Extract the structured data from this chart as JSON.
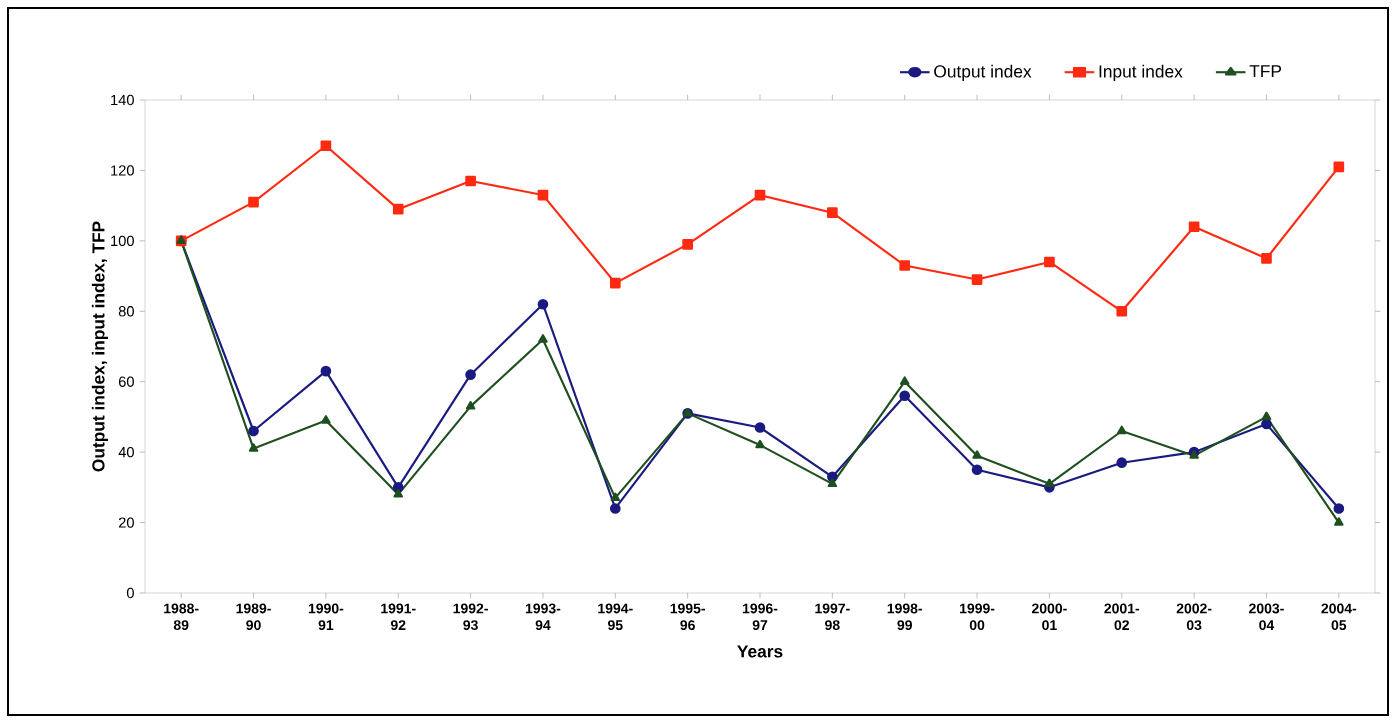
{
  "chart_data": {
    "type": "line",
    "xlabel": "Years",
    "ylabel": "Output index, input index, TFP",
    "categories": [
      "1988-89",
      "1989-90",
      "1990-91",
      "1991-92",
      "1992-93",
      "1993-94",
      "1994-95",
      "1995-96",
      "1996-97",
      "1997-98",
      "1998-99",
      "1999-00",
      "2000-01",
      "2001-02",
      "2002-03",
      "2003-04",
      "2004-05"
    ],
    "series": [
      {
        "name": "Output index",
        "color": "#1a1a80",
        "marker": "circle",
        "values": [
          100,
          46,
          63,
          30,
          62,
          82,
          24,
          51,
          47,
          33,
          56,
          35,
          30,
          37,
          40,
          48,
          24
        ]
      },
      {
        "name": "Input index",
        "color": "#ff2a10",
        "marker": "square",
        "values": [
          100,
          111,
          127,
          109,
          117,
          113,
          88,
          99,
          113,
          108,
          93,
          89,
          94,
          80,
          104,
          95,
          121
        ]
      },
      {
        "name": "TFP",
        "color": "#1f4f1f",
        "marker": "triangle",
        "values": [
          100,
          41,
          49,
          28,
          53,
          72,
          27,
          51,
          42,
          31,
          60,
          39,
          31,
          46,
          39,
          50,
          20
        ]
      }
    ],
    "ylim": [
      0,
      140
    ],
    "yticks": [
      0,
      20,
      40,
      60,
      80,
      100,
      120,
      140
    ],
    "legend": "top right",
    "line_style": "solid"
  }
}
